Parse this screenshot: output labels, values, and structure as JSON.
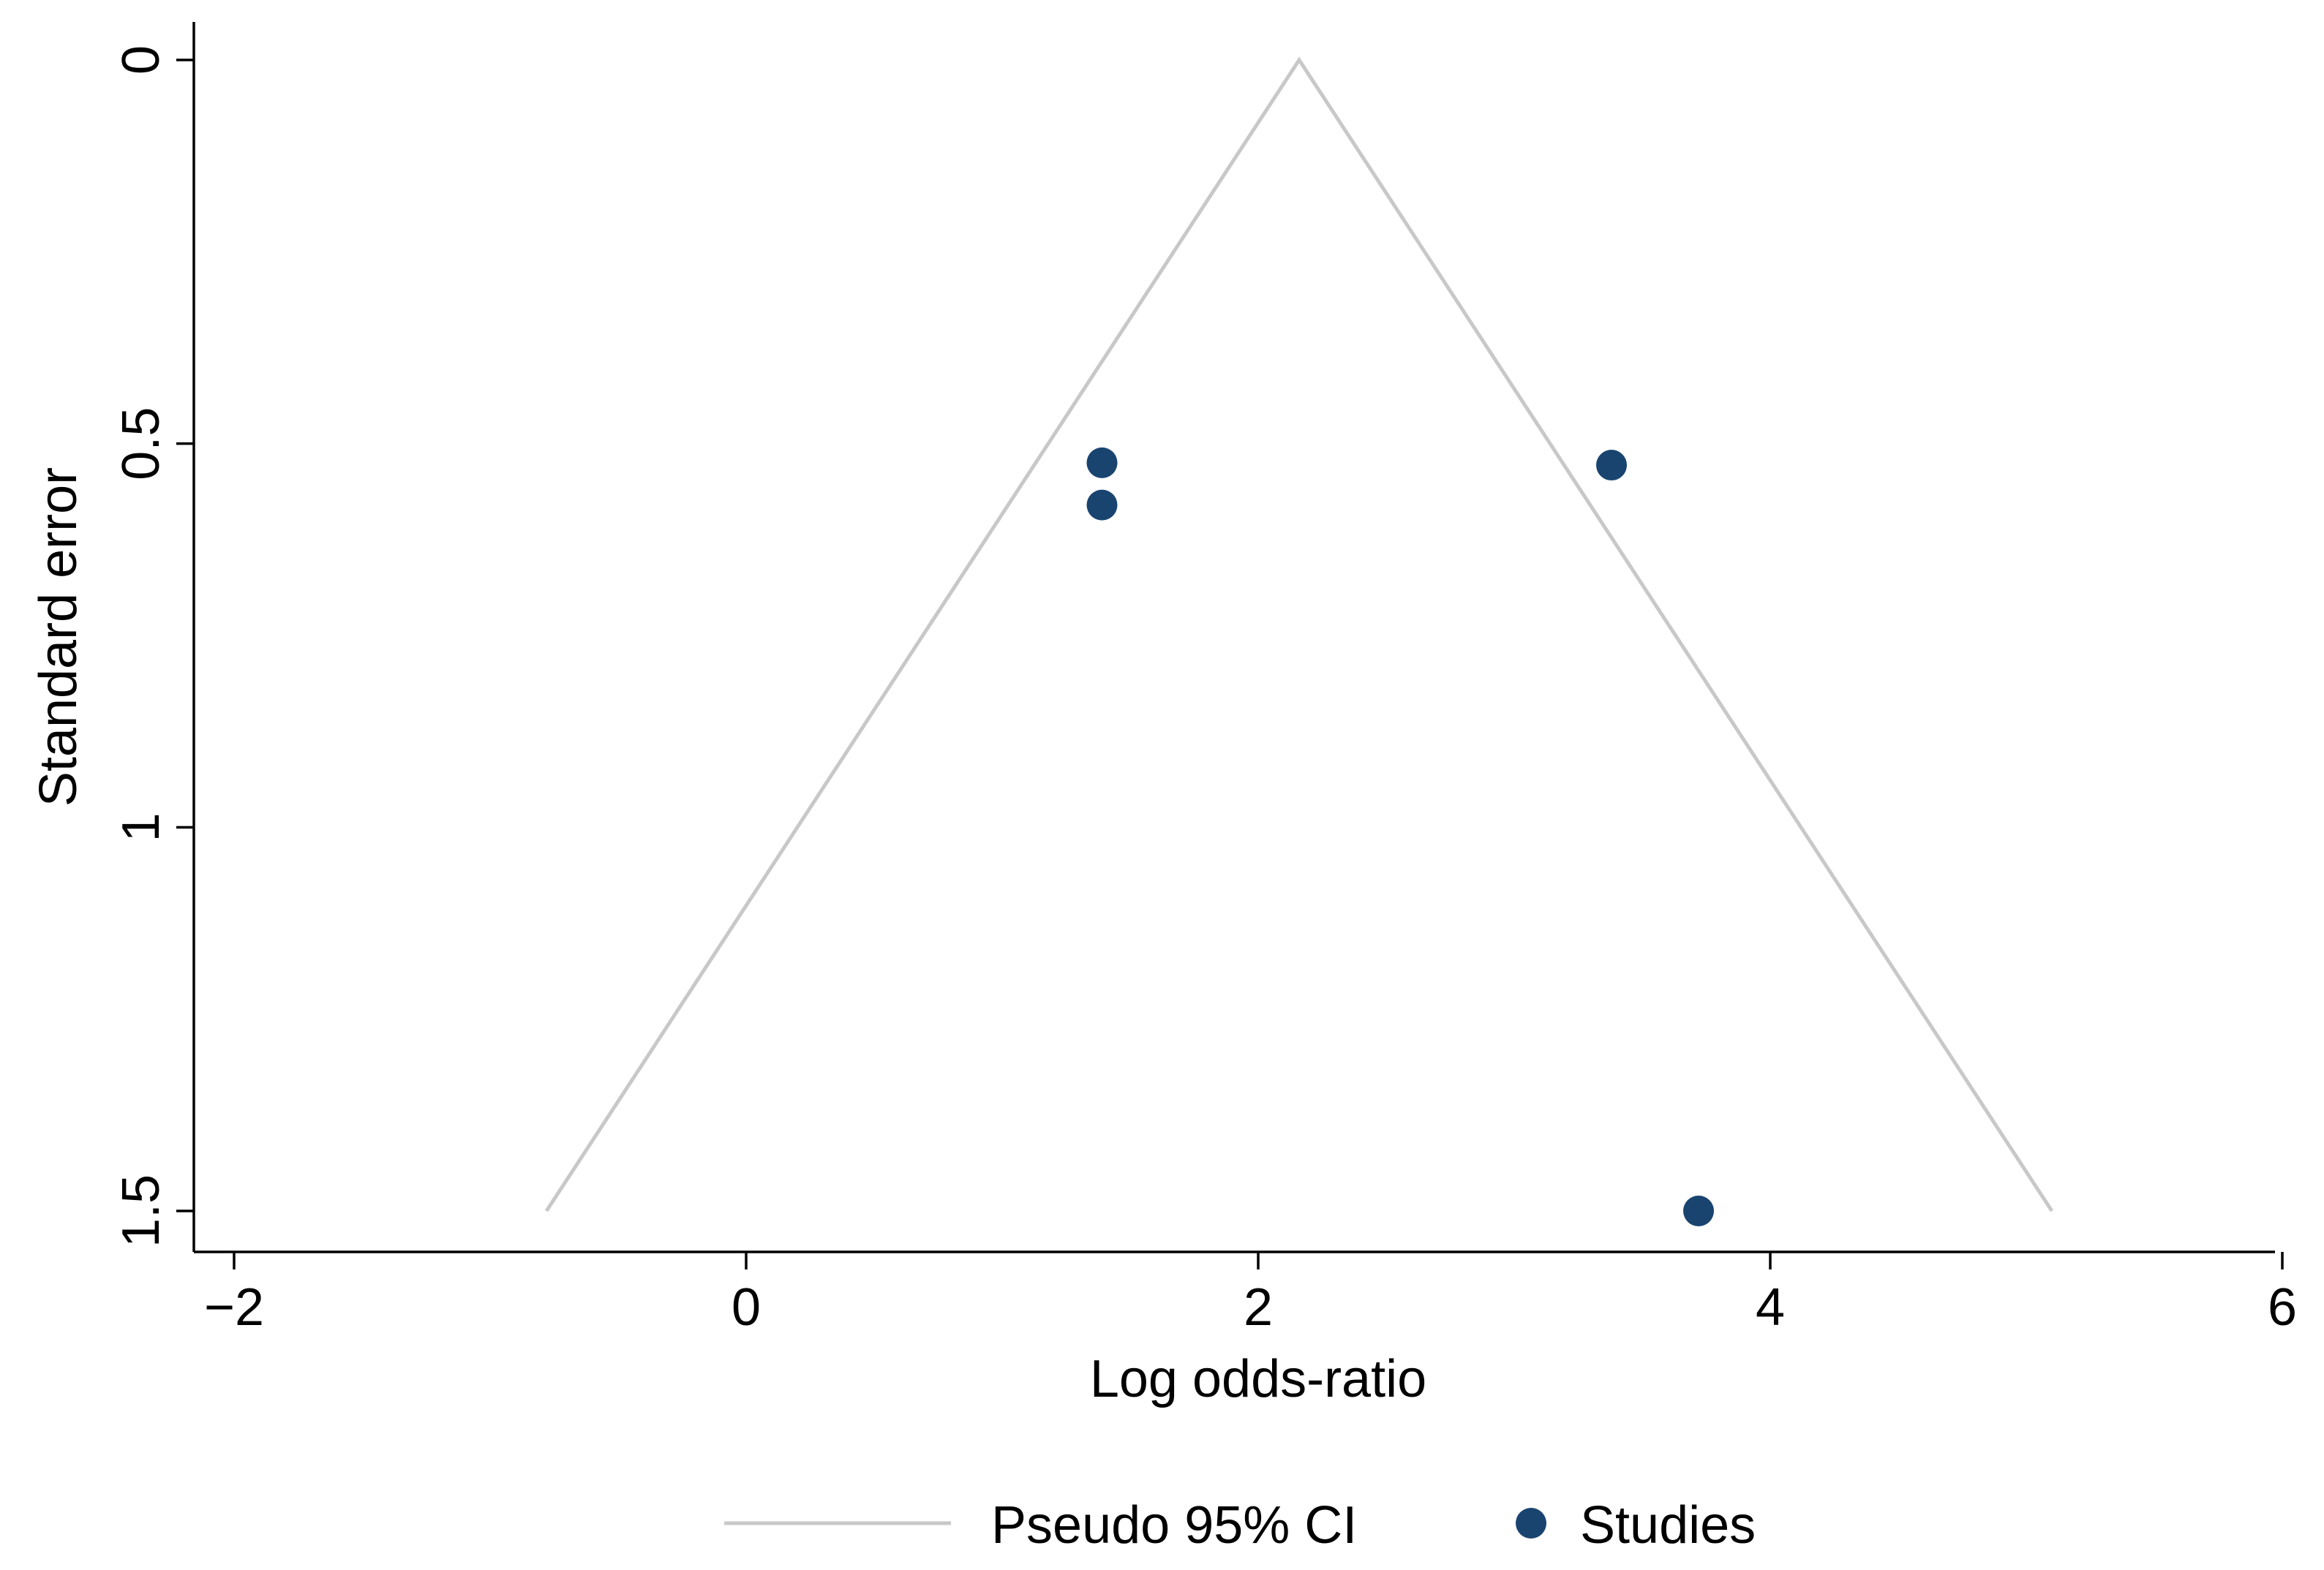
{
  "chart_data": {
    "type": "scatter",
    "title": "",
    "xlabel": "Log odds-ratio",
    "ylabel": "Standard error",
    "xlim": [
      -2.1,
      6.0
    ],
    "ylim": [
      0,
      1.55
    ],
    "y_reversed": true,
    "x_ticks": [
      -2,
      0,
      2,
      4,
      6
    ],
    "x_tick_labels": [
      "−2",
      "0",
      "2",
      "4",
      "6"
    ],
    "y_ticks": [
      0,
      0.5,
      1,
      1.5
    ],
    "y_tick_labels": [
      "0",
      "0.5",
      "1",
      "1.5"
    ],
    "grid": false,
    "legend_position": "bottom",
    "series": [
      {
        "name": "Pseudo 95% CI",
        "kind": "line",
        "color": "#c8c8c8",
        "x": [
          -0.78,
          2.16,
          5.1
        ],
        "y": [
          1.5,
          0,
          1.5
        ]
      },
      {
        "name": "Studies",
        "kind": "scatter",
        "color": "#1a4470",
        "x": [
          1.39,
          1.39,
          3.38,
          3.72
        ],
        "y": [
          0.525,
          0.58,
          0.528,
          1.5
        ]
      }
    ]
  }
}
